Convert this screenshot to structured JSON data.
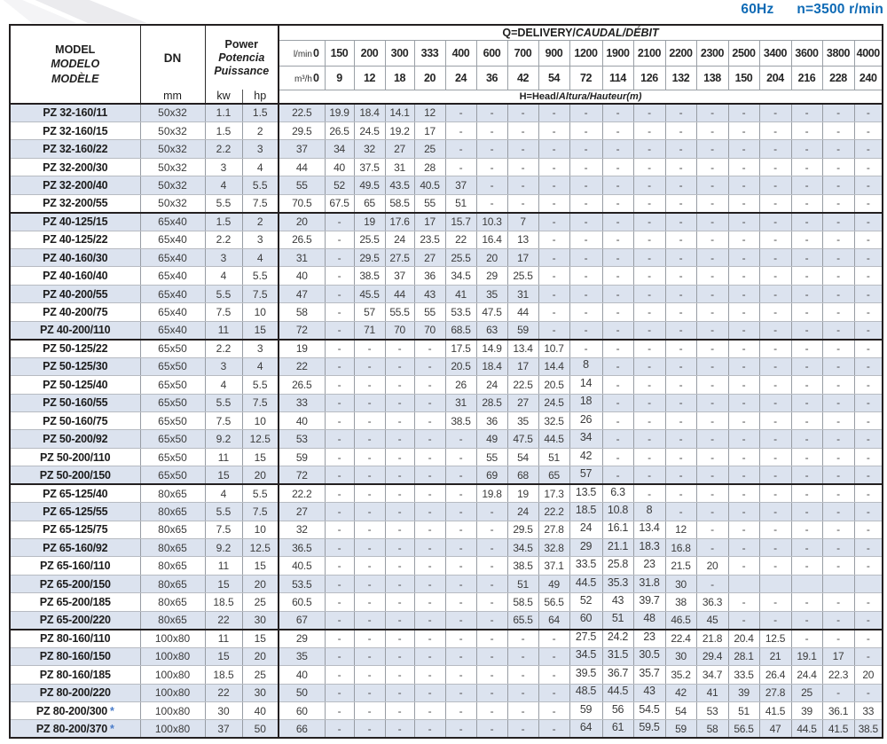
{
  "meta": {
    "frequency": "60Hz",
    "speed": "n=3500 r/min"
  },
  "header": {
    "model_en": "MODEL",
    "model_es": "MODELO",
    "model_fr": "MODÈLE",
    "dn": "DN",
    "dn_unit": "mm",
    "power_en": "Power",
    "power_es": "Potencia",
    "power_fr": "Puissance",
    "kw": "kw",
    "hp": "hp",
    "q_title_en": "Q=DELIVERY/",
    "q_title_intl": "CAUDAL/DÉBIT",
    "h_title_en": "H=Head/",
    "h_title_intl": "Altura/Hauteur(m)",
    "lmin_label": "l/min",
    "m3h_label": "m³/h",
    "flow_lmin": [
      "0",
      "150",
      "200",
      "300",
      "333",
      "400",
      "600",
      "700",
      "900",
      "1200",
      "1900",
      "2100",
      "2200",
      "2300",
      "2500",
      "3400",
      "3600",
      "3800",
      "4000"
    ],
    "flow_m3h": [
      "0",
      "9",
      "12",
      "18",
      "20",
      "24",
      "36",
      "42",
      "54",
      "72",
      "114",
      "126",
      "132",
      "138",
      "150",
      "204",
      "216",
      "228",
      "240"
    ]
  },
  "table": {
    "rows": [
      {
        "model": "PZ 32-160/11",
        "star": false,
        "group_start": false,
        "dn": "50x32",
        "kw": "1.1",
        "hp": "1.5",
        "head": [
          "22.5",
          "19.9",
          "18.4",
          "14.1",
          "12",
          "-",
          "-",
          "-",
          "-",
          "-",
          "-",
          "-",
          "-",
          "-",
          "-",
          "-",
          "-",
          "-",
          "-"
        ]
      },
      {
        "model": "PZ 32-160/15",
        "star": false,
        "group_start": false,
        "dn": "50x32",
        "kw": "1.5",
        "hp": "2",
        "head": [
          "29.5",
          "26.5",
          "24.5",
          "19.2",
          "17",
          "-",
          "-",
          "-",
          "-",
          "-",
          "-",
          "-",
          "-",
          "-",
          "-",
          "-",
          "-",
          "-",
          "-"
        ]
      },
      {
        "model": "PZ 32-160/22",
        "star": false,
        "group_start": false,
        "dn": "50x32",
        "kw": "2.2",
        "hp": "3",
        "head": [
          "37",
          "34",
          "32",
          "27",
          "25",
          "-",
          "-",
          "-",
          "-",
          "-",
          "-",
          "-",
          "-",
          "-",
          "-",
          "-",
          "-",
          "-",
          "-"
        ]
      },
      {
        "model": "PZ 32-200/30",
        "star": false,
        "group_start": false,
        "dn": "50x32",
        "kw": "3",
        "hp": "4",
        "head": [
          "44",
          "40",
          "37.5",
          "31",
          "28",
          "-",
          "-",
          "-",
          "-",
          "-",
          "-",
          "-",
          "-",
          "-",
          "-",
          "-",
          "-",
          "-",
          "-"
        ]
      },
      {
        "model": "PZ 32-200/40",
        "star": false,
        "group_start": false,
        "dn": "50x32",
        "kw": "4",
        "hp": "5.5",
        "head": [
          "55",
          "52",
          "49.5",
          "43.5",
          "40.5",
          "37",
          "-",
          "-",
          "-",
          "-",
          "-",
          "-",
          "-",
          "-",
          "-",
          "-",
          "-",
          "-",
          "-"
        ]
      },
      {
        "model": "PZ 32-200/55",
        "star": false,
        "group_start": false,
        "dn": "50x32",
        "kw": "5.5",
        "hp": "7.5",
        "head": [
          "70.5",
          "67.5",
          "65",
          "58.5",
          "55",
          "51",
          "-",
          "-",
          "-",
          "-",
          "-",
          "-",
          "-",
          "-",
          "-",
          "-",
          "-",
          "-",
          "-"
        ]
      },
      {
        "model": "PZ 40-125/15",
        "star": false,
        "group_start": true,
        "dn": "65x40",
        "kw": "1.5",
        "hp": "2",
        "head": [
          "20",
          "-",
          "19",
          "17.6",
          "17",
          "15.7",
          "10.3",
          "7",
          "-",
          "-",
          "-",
          "-",
          "-",
          "-",
          "-",
          "-",
          "-",
          "-",
          "-"
        ]
      },
      {
        "model": "PZ 40-125/22",
        "star": false,
        "group_start": false,
        "dn": "65x40",
        "kw": "2.2",
        "hp": "3",
        "head": [
          "26.5",
          "-",
          "25.5",
          "24",
          "23.5",
          "22",
          "16.4",
          "13",
          "-",
          "-",
          "-",
          "-",
          "-",
          "-",
          "-",
          "-",
          "-",
          "-",
          "-"
        ]
      },
      {
        "model": "PZ 40-160/30",
        "star": false,
        "group_start": false,
        "dn": "65x40",
        "kw": "3",
        "hp": "4",
        "head": [
          "31",
          "-",
          "29.5",
          "27.5",
          "27",
          "25.5",
          "20",
          "17",
          "-",
          "-",
          "-",
          "-",
          "-",
          "-",
          "-",
          "-",
          "-",
          "-",
          "-"
        ]
      },
      {
        "model": "PZ 40-160/40",
        "star": false,
        "group_start": false,
        "dn": "65x40",
        "kw": "4",
        "hp": "5.5",
        "head": [
          "40",
          "-",
          "38.5",
          "37",
          "36",
          "34.5",
          "29",
          "25.5",
          "-",
          "-",
          "-",
          "-",
          "-",
          "-",
          "-",
          "-",
          "-",
          "-",
          "-"
        ]
      },
      {
        "model": "PZ 40-200/55",
        "star": false,
        "group_start": false,
        "dn": "65x40",
        "kw": "5.5",
        "hp": "7.5",
        "head": [
          "47",
          "-",
          "45.5",
          "44",
          "43",
          "41",
          "35",
          "31",
          "-",
          "-",
          "-",
          "-",
          "-",
          "-",
          "-",
          "-",
          "-",
          "-",
          "-"
        ]
      },
      {
        "model": "PZ 40-200/75",
        "star": false,
        "group_start": false,
        "dn": "65x40",
        "kw": "7.5",
        "hp": "10",
        "head": [
          "58",
          "-",
          "57",
          "55.5",
          "55",
          "53.5",
          "47.5",
          "44",
          "-",
          "-",
          "-",
          "-",
          "-",
          "-",
          "-",
          "-",
          "-",
          "-",
          "-"
        ]
      },
      {
        "model": "PZ 40-200/110",
        "star": false,
        "group_start": false,
        "dn": "65x40",
        "kw": "11",
        "hp": "15",
        "head": [
          "72",
          "-",
          "71",
          "70",
          "70",
          "68.5",
          "63",
          "59",
          "-",
          "-",
          "-",
          "-",
          "-",
          "-",
          "-",
          "-",
          "-",
          "-",
          "-"
        ]
      },
      {
        "model": "PZ 50-125/22",
        "star": false,
        "group_start": true,
        "dn": "65x50",
        "kw": "2.2",
        "hp": "3",
        "head": [
          "19",
          "-",
          "-",
          "-",
          "-",
          "17.5",
          "14.9",
          "13.4",
          "10.7",
          "-",
          "-",
          "-",
          "-",
          "-",
          "-",
          "-",
          "-",
          "-",
          "-"
        ]
      },
      {
        "model": "PZ 50-125/30",
        "star": false,
        "group_start": false,
        "dn": "65x50",
        "kw": "3",
        "hp": "4",
        "head": [
          "22",
          "-",
          "-",
          "-",
          "-",
          "20.5",
          "18.4",
          "17",
          "14.4",
          "8",
          "-",
          "-",
          "-",
          "-",
          "-",
          "-",
          "-",
          "-",
          "-"
        ]
      },
      {
        "model": "PZ 50-125/40",
        "star": false,
        "group_start": false,
        "dn": "65x50",
        "kw": "4",
        "hp": "5.5",
        "head": [
          "26.5",
          "-",
          "-",
          "-",
          "-",
          "26",
          "24",
          "22.5",
          "20.5",
          "14",
          "-",
          "-",
          "-",
          "-",
          "-",
          "-",
          "-",
          "-",
          "-"
        ]
      },
      {
        "model": "PZ 50-160/55",
        "star": false,
        "group_start": false,
        "dn": "65x50",
        "kw": "5.5",
        "hp": "7.5",
        "head": [
          "33",
          "-",
          "-",
          "-",
          "-",
          "31",
          "28.5",
          "27",
          "24.5",
          "18",
          "-",
          "-",
          "-",
          "-",
          "-",
          "-",
          "-",
          "-",
          "-"
        ]
      },
      {
        "model": "PZ 50-160/75",
        "star": false,
        "group_start": false,
        "dn": "65x50",
        "kw": "7.5",
        "hp": "10",
        "head": [
          "40",
          "-",
          "-",
          "-",
          "-",
          "38.5",
          "36",
          "35",
          "32.5",
          "26",
          "-",
          "-",
          "-",
          "-",
          "-",
          "-",
          "-",
          "-",
          "-"
        ]
      },
      {
        "model": "PZ 50-200/92",
        "star": false,
        "group_start": false,
        "dn": "65x50",
        "kw": "9.2",
        "hp": "12.5",
        "head": [
          "53",
          "-",
          "-",
          "-",
          "-",
          "-",
          "49",
          "47.5",
          "44.5",
          "34",
          "-",
          "-",
          "-",
          "-",
          "-",
          "-",
          "-",
          "-",
          "-"
        ]
      },
      {
        "model": "PZ 50-200/110",
        "star": false,
        "group_start": false,
        "dn": "65x50",
        "kw": "11",
        "hp": "15",
        "head": [
          "59",
          "-",
          "-",
          "-",
          "-",
          "-",
          "55",
          "54",
          "51",
          "42",
          "-",
          "-",
          "-",
          "-",
          "-",
          "-",
          "-",
          "-",
          "-"
        ]
      },
      {
        "model": "PZ 50-200/150",
        "star": false,
        "group_start": false,
        "dn": "65x50",
        "kw": "15",
        "hp": "20",
        "head": [
          "72",
          "-",
          "-",
          "-",
          "-",
          "-",
          "69",
          "68",
          "65",
          "57",
          "-",
          "-",
          "-",
          "-",
          "-",
          "-",
          "-",
          "-",
          "-"
        ]
      },
      {
        "model": "PZ 65-125/40",
        "star": false,
        "group_start": true,
        "dn": "80x65",
        "kw": "4",
        "hp": "5.5",
        "head": [
          "22.2",
          "-",
          "-",
          "-",
          "-",
          "-",
          "19.8",
          "19",
          "17.3",
          "13.5",
          "6.3",
          "-",
          "-",
          "-",
          "-",
          "-",
          "-",
          "-",
          "-"
        ]
      },
      {
        "model": "PZ 65-125/55",
        "star": false,
        "group_start": false,
        "dn": "80x65",
        "kw": "5.5",
        "hp": "7.5",
        "head": [
          "27",
          "-",
          "-",
          "-",
          "-",
          "-",
          "-",
          "24",
          "22.2",
          "18.5",
          "10.8",
          "8",
          "-",
          "-",
          "-",
          "-",
          "-",
          "-",
          "-"
        ]
      },
      {
        "model": "PZ 65-125/75",
        "star": false,
        "group_start": false,
        "dn": "80x65",
        "kw": "7.5",
        "hp": "10",
        "head": [
          "32",
          "-",
          "-",
          "-",
          "-",
          "-",
          "-",
          "29.5",
          "27.8",
          "24",
          "16.1",
          "13.4",
          "12",
          "-",
          "-",
          "-",
          "-",
          "-",
          "-"
        ]
      },
      {
        "model": "PZ 65-160/92",
        "star": false,
        "group_start": false,
        "dn": "80x65",
        "kw": "9.2",
        "hp": "12.5",
        "head": [
          "36.5",
          "-",
          "-",
          "-",
          "-",
          "-",
          "-",
          "34.5",
          "32.8",
          "29",
          "21.1",
          "18.3",
          "16.8",
          "-",
          "-",
          "-",
          "-",
          "-",
          "-"
        ]
      },
      {
        "model": "PZ 65-160/110",
        "star": false,
        "group_start": false,
        "dn": "80x65",
        "kw": "11",
        "hp": "15",
        "head": [
          "40.5",
          "-",
          "-",
          "-",
          "-",
          "-",
          "-",
          "38.5",
          "37.1",
          "33.5",
          "25.8",
          "23",
          "21.5",
          "20",
          "-",
          "-",
          "-",
          "-",
          "-"
        ]
      },
      {
        "model": "PZ 65-200/150",
        "star": false,
        "group_start": false,
        "dn": "80x65",
        "kw": "15",
        "hp": "20",
        "head": [
          "53.5",
          "-",
          "-",
          "-",
          "-",
          "-",
          "-",
          "51",
          "49",
          "44.5",
          "35.3",
          "31.8",
          "30",
          "-",
          "",
          "",
          "",
          "",
          ""
        ]
      },
      {
        "model": "PZ 65-200/185",
        "star": false,
        "group_start": false,
        "dn": "80x65",
        "kw": "18.5",
        "hp": "25",
        "head": [
          "60.5",
          "-",
          "-",
          "-",
          "-",
          "-",
          "-",
          "58.5",
          "56.5",
          "52",
          "43",
          "39.7",
          "38",
          "36.3",
          "-",
          "-",
          "-",
          "-",
          "-"
        ]
      },
      {
        "model": "PZ 65-200/220",
        "star": false,
        "group_start": false,
        "dn": "80x65",
        "kw": "22",
        "hp": "30",
        "head": [
          "67",
          "-",
          "-",
          "-",
          "-",
          "-",
          "-",
          "65.5",
          "64",
          "60",
          "51",
          "48",
          "46.5",
          "45",
          "-",
          "-",
          "-",
          "-",
          "-"
        ]
      },
      {
        "model": "PZ 80-160/110",
        "star": false,
        "group_start": true,
        "dn": "100x80",
        "kw": "11",
        "hp": "15",
        "head": [
          "29",
          "-",
          "-",
          "-",
          "-",
          "-",
          "-",
          "-",
          "-",
          "27.5",
          "24.2",
          "23",
          "22.4",
          "21.8",
          "20.4",
          "12.5",
          "-",
          "-",
          "-"
        ]
      },
      {
        "model": "PZ 80-160/150",
        "star": false,
        "group_start": false,
        "dn": "100x80",
        "kw": "15",
        "hp": "20",
        "head": [
          "35",
          "-",
          "-",
          "-",
          "-",
          "-",
          "-",
          "-",
          "-",
          "34.5",
          "31.5",
          "30.5",
          "30",
          "29.4",
          "28.1",
          "21",
          "19.1",
          "17",
          "-"
        ]
      },
      {
        "model": "PZ 80-160/185",
        "star": false,
        "group_start": false,
        "dn": "100x80",
        "kw": "18.5",
        "hp": "25",
        "head": [
          "40",
          "-",
          "-",
          "-",
          "-",
          "-",
          "-",
          "-",
          "-",
          "39.5",
          "36.7",
          "35.7",
          "35.2",
          "34.7",
          "33.5",
          "26.4",
          "24.4",
          "22.3",
          "20"
        ]
      },
      {
        "model": "PZ 80-200/220",
        "star": false,
        "group_start": false,
        "dn": "100x80",
        "kw": "22",
        "hp": "30",
        "head": [
          "50",
          "-",
          "-",
          "-",
          "-",
          "-",
          "-",
          "-",
          "-",
          "48.5",
          "44.5",
          "43",
          "42",
          "41",
          "39",
          "27.8",
          "25",
          "-",
          "-"
        ]
      },
      {
        "model": "PZ 80-200/300",
        "star": true,
        "group_start": false,
        "dn": "100x80",
        "kw": "30",
        "hp": "40",
        "head": [
          "60",
          "-",
          "-",
          "-",
          "-",
          "-",
          "-",
          "-",
          "-",
          "59",
          "56",
          "54.5",
          "54",
          "53",
          "51",
          "41.5",
          "39",
          "36.1",
          "33"
        ]
      },
      {
        "model": "PZ 80-200/370",
        "star": true,
        "group_start": false,
        "dn": "100x80",
        "kw": "37",
        "hp": "50",
        "head": [
          "66",
          "-",
          "-",
          "-",
          "-",
          "-",
          "-",
          "-",
          "-",
          "64",
          "61",
          "59.5",
          "59",
          "58",
          "56.5",
          "47",
          "44.5",
          "41.5",
          "38.5"
        ]
      }
    ]
  }
}
